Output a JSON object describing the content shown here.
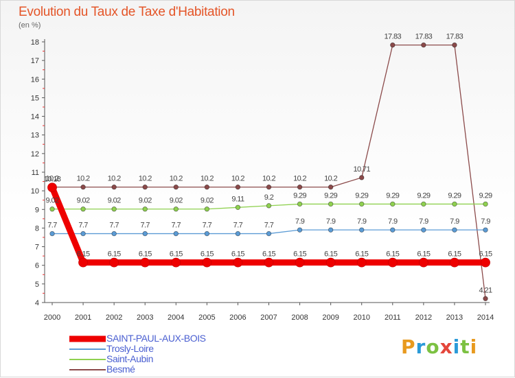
{
  "title": "Evolution du Taux de Taxe d'Habitation",
  "subtitle": "(en %)",
  "logo": {
    "text": "Proxiti",
    "colors": [
      "#e89a1f",
      "#2a9ad8",
      "#7cc142",
      "#e4463b",
      "#2a9ad8",
      "#7cc142",
      "#e89a1f"
    ]
  },
  "chart_data": {
    "type": "line",
    "x": [
      "2000",
      "2001",
      "2002",
      "2003",
      "2004",
      "2005",
      "2006",
      "2007",
      "2008",
      "2009",
      "2010",
      "2011",
      "2012",
      "2013",
      "2014"
    ],
    "ylim": [
      4,
      18
    ],
    "yticks": [
      "4",
      "5",
      "6",
      "7",
      "8",
      "9",
      "10",
      "11",
      "12",
      "13",
      "14",
      "15",
      "16",
      "17",
      "18"
    ],
    "grid": false,
    "legend_position": "bottom-left",
    "series": [
      {
        "name": "SAINT-PAUL-AUX-BOIS",
        "color": "#ee0000",
        "values": [
          10.18,
          6.15,
          6.15,
          6.15,
          6.15,
          6.15,
          6.15,
          6.15,
          6.15,
          6.15,
          6.15,
          6.15,
          6.15,
          6.15,
          6.15
        ],
        "labels": [
          "10.18",
          "6.15",
          "6.15",
          "6.15",
          "6.15",
          "6.15",
          "6.15",
          "6.15",
          "6.15",
          "6.15",
          "6.15",
          "6.15",
          "6.15",
          "6.15",
          "6.15"
        ]
      },
      {
        "name": "Trosly-Loire",
        "color": "#5b9bd5",
        "values": [
          7.7,
          7.7,
          7.7,
          7.7,
          7.7,
          7.7,
          7.7,
          7.7,
          7.9,
          7.9,
          7.9,
          7.9,
          7.9,
          7.9,
          7.9
        ],
        "labels": [
          "7.7",
          "7.7",
          "7.7",
          "7.7",
          "7.7",
          "7.7",
          "7.7",
          "7.7",
          "7.9",
          "7.9",
          "7.9",
          "7.9",
          "7.9",
          "7.9",
          "7.9"
        ]
      },
      {
        "name": "Saint-Aubin",
        "color": "#8fd14f",
        "values": [
          9.02,
          9.02,
          9.02,
          9.02,
          9.02,
          9.02,
          9.11,
          9.2,
          9.29,
          9.29,
          9.29,
          9.29,
          9.29,
          9.29,
          9.29
        ],
        "labels": [
          "9.02",
          "9.02",
          "9.02",
          "9.02",
          "9.02",
          "9.02",
          "9.11",
          "9.2",
          "9.29",
          "9.29",
          "9.29",
          "9.29",
          "9.29",
          "9.29",
          "9.29"
        ]
      },
      {
        "name": "Besmé",
        "color": "#8b4a4a",
        "values": [
          10.2,
          10.2,
          10.2,
          10.2,
          10.2,
          10.2,
          10.2,
          10.2,
          10.2,
          10.2,
          10.71,
          17.83,
          17.83,
          17.83,
          4.21
        ],
        "labels": [
          "10.2",
          "10.2",
          "10.2",
          "10.2",
          "10.2",
          "10.2",
          "10.2",
          "10.2",
          "10.2",
          "10.2",
          "10.71",
          "17.83",
          "17.83",
          "17.83",
          "4.21"
        ]
      }
    ]
  }
}
